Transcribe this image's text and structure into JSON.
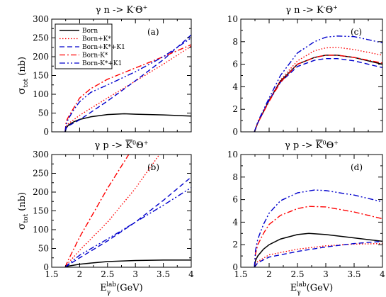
{
  "chart_data": [
    {
      "id": "a",
      "type": "line",
      "title_parts": [
        "γ n -> K",
        "-",
        "Θ",
        "+"
      ],
      "panel_label": "(a)",
      "ylabel_parts": [
        "σ",
        "tot",
        "(nb)"
      ],
      "xlabel_parts": [],
      "xlim": [
        1.5,
        4
      ],
      "ylim": [
        0,
        300
      ],
      "xticks": [
        1.5,
        2,
        2.5,
        3,
        3.5,
        4
      ],
      "xtick_labels": [
        "",
        "",
        "",
        "",
        "",
        ""
      ],
      "yticks": [
        0,
        50,
        100,
        150,
        200,
        250,
        300
      ],
      "ytick_labels": [
        "0",
        "50",
        "100",
        "150",
        "200",
        "250",
        "300"
      ],
      "legend": {
        "position": "upper-left",
        "entries": [
          "Born",
          "Born+K*",
          "Born+K*+K1",
          "Born-K*",
          "Born-K*+K1"
        ]
      },
      "series": [
        {
          "name": "Born",
          "style": "solid",
          "color": "#000000",
          "x": [
            1.74,
            1.76,
            1.8,
            1.9,
            2.0,
            2.2,
            2.5,
            2.8,
            3.0,
            3.5,
            4.0
          ],
          "y": [
            0,
            10,
            18,
            27,
            33,
            40,
            46,
            48,
            47,
            45,
            42
          ]
        },
        {
          "name": "Born+K*",
          "style": "dotted",
          "color": "#ff0000",
          "x": [
            1.74,
            1.76,
            1.8,
            1.9,
            2.0,
            2.5,
            3.0,
            3.5,
            4.0
          ],
          "y": [
            0,
            15,
            22,
            33,
            44,
            90,
            135,
            180,
            228
          ]
        },
        {
          "name": "Born+K*+K1",
          "style": "dashed",
          "color": "#0000cc",
          "x": [
            1.74,
            1.76,
            1.8,
            1.9,
            2.0,
            2.5,
            3.0,
            3.5,
            4.0
          ],
          "y": [
            0,
            10,
            16,
            24,
            32,
            82,
            136,
            192,
            258
          ]
        },
        {
          "name": "Born-K*",
          "style": "dashdot",
          "color": "#ff0000",
          "x": [
            1.74,
            1.76,
            1.8,
            1.9,
            2.0,
            2.2,
            2.5,
            3.0,
            3.5,
            4.0
          ],
          "y": [
            0,
            28,
            40,
            65,
            90,
            115,
            140,
            170,
            200,
            232
          ]
        },
        {
          "name": "Born-K*+K1",
          "style": "dashdotdot",
          "color": "#0000cc",
          "x": [
            1.74,
            1.76,
            1.8,
            1.9,
            2.0,
            2.2,
            2.5,
            3.0,
            3.5,
            4.0
          ],
          "y": [
            0,
            20,
            35,
            60,
            80,
            105,
            125,
            160,
            200,
            250
          ]
        }
      ]
    },
    {
      "id": "c",
      "type": "line",
      "title_parts": [
        "γ n -> K",
        "-",
        "Θ",
        "+"
      ],
      "panel_label": "(c)",
      "ylabel_parts": [],
      "xlabel_parts": [],
      "xlim": [
        1.5,
        4
      ],
      "ylim": [
        0,
        10
      ],
      "xticks": [
        1.5,
        2,
        2.5,
        3,
        3.5,
        4
      ],
      "xtick_labels": [
        "",
        "",
        "",
        "",
        "",
        ""
      ],
      "yticks": [
        0,
        2,
        4,
        6,
        8,
        10
      ],
      "ytick_labels": [
        "0",
        "2",
        "4",
        "6",
        "8",
        "10"
      ],
      "series": [
        {
          "name": "Born",
          "style": "solid",
          "color": "#000000",
          "x": [
            1.74,
            1.8,
            2.0,
            2.2,
            2.5,
            2.8,
            3.0,
            3.2,
            3.5,
            4.0
          ],
          "y": [
            0,
            0.8,
            2.8,
            4.5,
            6.0,
            6.6,
            6.8,
            6.8,
            6.6,
            6.0
          ]
        },
        {
          "name": "Born+K*",
          "style": "dotted",
          "color": "#ff0000",
          "x": [
            1.74,
            1.8,
            2.0,
            2.2,
            2.5,
            2.8,
            3.0,
            3.2,
            3.5,
            4.0
          ],
          "y": [
            0,
            0.8,
            2.8,
            4.6,
            6.3,
            7.2,
            7.45,
            7.5,
            7.3,
            6.8
          ]
        },
        {
          "name": "Born+K*+K1",
          "style": "dashed",
          "color": "#0000cc",
          "x": [
            1.74,
            1.8,
            2.0,
            2.2,
            2.5,
            2.8,
            3.0,
            3.2,
            3.5,
            4.0
          ],
          "y": [
            0,
            0.8,
            2.8,
            4.4,
            5.8,
            6.35,
            6.5,
            6.5,
            6.3,
            5.7
          ]
        },
        {
          "name": "Born-K*",
          "style": "dashdot",
          "color": "#ff0000",
          "x": [
            1.74,
            1.8,
            2.0,
            2.2,
            2.5,
            2.8,
            3.0,
            3.2,
            3.5,
            4.0
          ],
          "y": [
            0,
            0.8,
            2.7,
            4.4,
            6.0,
            6.6,
            6.8,
            6.8,
            6.6,
            6.1
          ]
        },
        {
          "name": "Born-K*+K1",
          "style": "dashdotdot",
          "color": "#0000cc",
          "x": [
            1.74,
            1.8,
            2.0,
            2.2,
            2.5,
            2.8,
            3.0,
            3.2,
            3.5,
            4.0
          ],
          "y": [
            0,
            0.9,
            3.0,
            5.0,
            7.0,
            8.0,
            8.4,
            8.5,
            8.45,
            7.9
          ]
        }
      ]
    },
    {
      "id": "b",
      "type": "line",
      "title_parts": [
        "γ p -> ",
        "K",
        "0",
        "Θ",
        "+"
      ],
      "panel_label": "(b)",
      "ylabel_parts": [
        "σ",
        "tot",
        "(nb)"
      ],
      "xlabel_parts": [
        "E",
        "γ",
        "lab",
        "(GeV)"
      ],
      "xlim": [
        1.5,
        4
      ],
      "ylim": [
        0,
        300
      ],
      "xticks": [
        1.5,
        2,
        2.5,
        3,
        3.5,
        4
      ],
      "xtick_labels": [
        "1.5",
        "2",
        "2.5",
        "3",
        "3.5",
        "4"
      ],
      "yticks": [
        0,
        50,
        100,
        150,
        200,
        250,
        300
      ],
      "ytick_labels": [
        "0",
        "50",
        "100",
        "150",
        "200",
        "250",
        "300"
      ],
      "series": [
        {
          "name": "Born",
          "style": "solid",
          "color": "#000000",
          "x": [
            1.74,
            1.8,
            2.0,
            2.2,
            2.5,
            3.0,
            3.5,
            4.0
          ],
          "y": [
            0,
            3,
            8,
            11,
            15,
            18,
            19,
            19
          ]
        },
        {
          "name": "Born+K*",
          "style": "dotted",
          "color": "#ff0000",
          "x": [
            1.74,
            1.8,
            2.0,
            2.5,
            3.0,
            3.43
          ],
          "y": [
            0,
            12,
            45,
            120,
            210,
            300
          ]
        },
        {
          "name": "Born+K*+K1",
          "style": "dashed",
          "color": "#0000cc",
          "x": [
            1.74,
            1.8,
            2.0,
            2.5,
            3.0,
            3.5,
            4.0
          ],
          "y": [
            0,
            6,
            25,
            70,
            120,
            178,
            240
          ]
        },
        {
          "name": "Born-K*",
          "style": "dashdot",
          "color": "#ff0000",
          "x": [
            1.74,
            1.8,
            2.0,
            2.5,
            2.88
          ],
          "y": [
            0,
            20,
            80,
            210,
            300
          ]
        },
        {
          "name": "Born-K*+K1",
          "style": "dashdotdot",
          "color": "#0000cc",
          "x": [
            1.74,
            1.8,
            2.0,
            2.5,
            3.0,
            3.5,
            4.0
          ],
          "y": [
            0,
            8,
            32,
            75,
            120,
            165,
            212
          ]
        }
      ]
    },
    {
      "id": "d",
      "type": "line",
      "title_parts": [
        "γ p -> ",
        "K",
        "0",
        "Θ",
        "+"
      ],
      "panel_label": "(d)",
      "ylabel_parts": [],
      "xlabel_parts": [
        "E",
        "γ",
        "lab",
        "(GeV)"
      ],
      "xlim": [
        1.5,
        4
      ],
      "ylim": [
        0,
        10
      ],
      "xticks": [
        1.5,
        2,
        2.5,
        3,
        3.5,
        4
      ],
      "xtick_labels": [
        "1.5",
        "2",
        "2.5",
        "3",
        "3.5",
        "4"
      ],
      "yticks": [
        0,
        2,
        4,
        6,
        8,
        10
      ],
      "ytick_labels": [
        "0",
        "2",
        "4",
        "6",
        "8",
        "10"
      ],
      "series": [
        {
          "name": "Born",
          "style": "solid",
          "color": "#000000",
          "x": [
            1.74,
            1.76,
            1.8,
            1.9,
            2.0,
            2.2,
            2.5,
            2.7,
            3.0,
            3.5,
            4.0
          ],
          "y": [
            0,
            0.6,
            1.0,
            1.6,
            2.0,
            2.5,
            2.9,
            3.0,
            2.9,
            2.6,
            2.3
          ]
        },
        {
          "name": "Born+K*",
          "style": "dotted",
          "color": "#ff0000",
          "x": [
            1.74,
            1.8,
            2.0,
            2.5,
            3.0,
            3.5,
            4.0
          ],
          "y": [
            0,
            0.5,
            1.1,
            1.6,
            1.9,
            2.05,
            2.1
          ]
        },
        {
          "name": "Born+K*+K1",
          "style": "dashed",
          "color": "#0000cc",
          "x": [
            1.74,
            1.8,
            2.0,
            2.5,
            3.0,
            3.5,
            4.0
          ],
          "y": [
            0,
            0.4,
            0.9,
            1.4,
            1.8,
            2.1,
            2.3
          ]
        },
        {
          "name": "Born-K*",
          "style": "dashdot",
          "color": "#ff0000",
          "x": [
            1.74,
            1.76,
            1.8,
            1.9,
            2.0,
            2.2,
            2.5,
            2.7,
            3.0,
            3.5,
            4.0
          ],
          "y": [
            0,
            1.2,
            2.0,
            3.0,
            3.8,
            4.6,
            5.2,
            5.4,
            5.35,
            4.9,
            4.3
          ]
        },
        {
          "name": "Born-K*+K1",
          "style": "dashdotdot",
          "color": "#0000cc",
          "x": [
            1.74,
            1.76,
            1.8,
            1.9,
            2.0,
            2.2,
            2.5,
            2.8,
            3.0,
            3.5,
            4.0
          ],
          "y": [
            0,
            1.5,
            2.5,
            3.8,
            4.8,
            5.9,
            6.6,
            6.85,
            6.8,
            6.4,
            5.8
          ]
        }
      ]
    }
  ]
}
